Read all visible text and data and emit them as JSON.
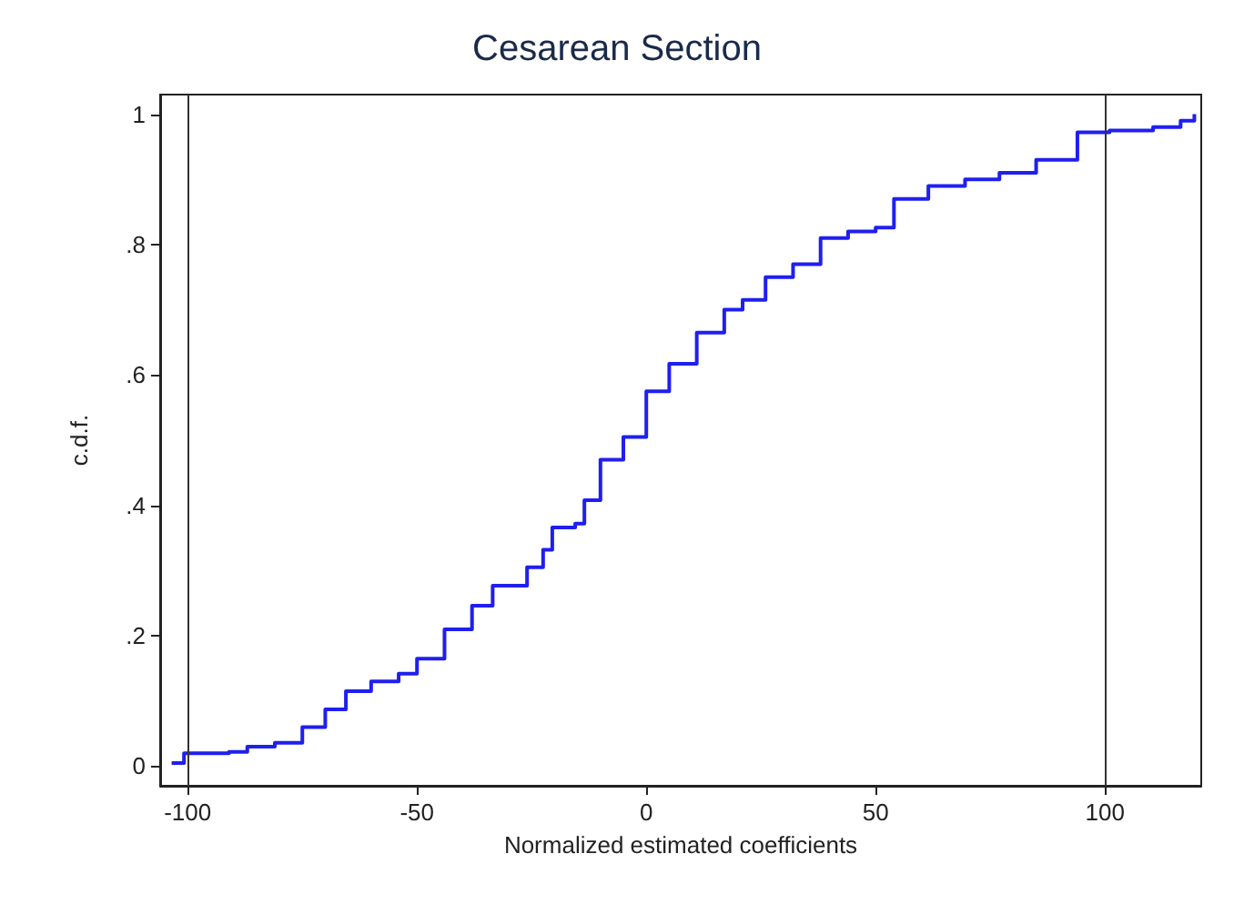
{
  "chart_data": {
    "type": "step",
    "title": "Cesarean Section",
    "xlabel": "Normalized estimated coefficients",
    "ylabel": "c.d.f.",
    "xlim": [
      -106,
      121
    ],
    "xticks": [
      -100,
      -50,
      0,
      50,
      100
    ],
    "ylim": [
      -0.03,
      1.03
    ],
    "yticks": [
      {
        "value": 0,
        "label": "0"
      },
      {
        "value": 0.2,
        "label": ".2"
      },
      {
        "value": 0.4,
        "label": ".4"
      },
      {
        "value": 0.6,
        "label": ".6"
      },
      {
        "value": 0.8,
        "label": ".8"
      },
      {
        "value": 1,
        "label": "1"
      }
    ],
    "grid": false,
    "marker": "none",
    "line_style": "solid",
    "ref_lines": [
      {
        "axis": "x",
        "value": -100,
        "color": "#333333"
      },
      {
        "axis": "x",
        "value": 100,
        "color": "#333333"
      }
    ],
    "series": [
      {
        "color": "#1f1fef",
        "x": [
          -103.5,
          -100.8,
          -91,
          -87,
          -81,
          -75,
          -70,
          -65.5,
          -60,
          -54,
          -50,
          -44,
          -38,
          -33.5,
          -26,
          -22.5,
          -20.5,
          -15.5,
          -13.5,
          -10,
          -5,
          0,
          5,
          11,
          17,
          21,
          26,
          32,
          38,
          44,
          50,
          54,
          61.5,
          69.5,
          77,
          85,
          94,
          101,
          110.5,
          116.5,
          119.5
        ],
        "values": [
          0.005,
          0.02,
          0.022,
          0.03,
          0.036,
          0.06,
          0.087,
          0.115,
          0.13,
          0.142,
          0.165,
          0.21,
          0.246,
          0.277,
          0.305,
          0.332,
          0.366,
          0.372,
          0.408,
          0.47,
          0.505,
          0.575,
          0.617,
          0.665,
          0.7,
          0.715,
          0.75,
          0.77,
          0.81,
          0.82,
          0.826,
          0.87,
          0.89,
          0.9,
          0.91,
          0.93,
          0.972,
          0.975,
          0.98,
          0.99,
          1.0
        ]
      }
    ]
  }
}
